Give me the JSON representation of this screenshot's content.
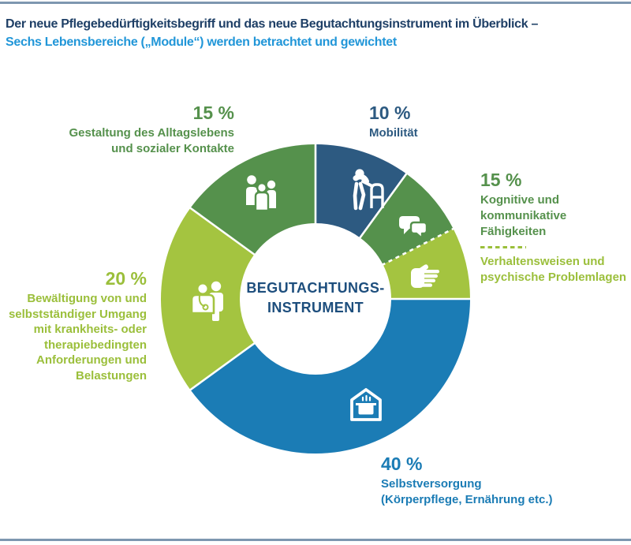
{
  "header": {
    "title_line1": "Der neue Pflegebedürftigkeitsbegriff und das neue Begutachtungsinstrument im Überblick –",
    "title_line2": "Sechs Lebensbereiche („Module“) werden betrachtet und gewichtet"
  },
  "chart_data": {
    "type": "pie",
    "variant": "donut",
    "title": "Der neue Pflegebedürftigkeitsbegriff und das neue Begutachtungsinstrument im Überblick – Sechs Lebensbereiche („Module“) werden betrachtet und gewichtet",
    "center_label": [
      "BEGUTACHTUNGS-",
      "INSTRUMENT"
    ],
    "start_angle_deg": 0,
    "direction": "clockwise",
    "legend_position": "around-chart",
    "segments": [
      {
        "label": "Mobilität",
        "value": 10,
        "color": "#2D5A81",
        "icon": "walker-icon",
        "divider_before": "solid"
      },
      {
        "label": "Kognitive und kommunikative Fähigkeiten",
        "value": 7.5,
        "color": "#55914C",
        "icon": "speech-bubbles-icon",
        "divider_before": "solid"
      },
      {
        "label": "Verhaltensweisen und psychische Problemlagen",
        "value": 7.5,
        "color": "#A4C440",
        "icon": "hand-icon",
        "divider_before": "dashed"
      },
      {
        "label": "Selbstversorgung (Körperpflege, Ernährung etc.)",
        "value": 40,
        "color": "#1B7CB5",
        "icon": "house-pot-icon",
        "divider_before": "solid"
      },
      {
        "label": "Bewältigung von und selbstständiger Umgang mit krankheits- oder therapiebedingten Anforderungen und Belastungen",
        "value": 20,
        "color": "#A4C440",
        "icon": "doctor-patient-icon",
        "divider_before": "solid"
      },
      {
        "label": "Gestaltung des Alltagslebens und sozialer Kontakte",
        "value": 15,
        "color": "#55914C",
        "icon": "people-group-icon",
        "divider_before": "solid"
      }
    ]
  },
  "labels": {
    "mobilitaet": {
      "pct": "10 %",
      "lines": [
        "Mobilität"
      ]
    },
    "kognitive": {
      "pct": "15 %",
      "block1": [
        "Kognitive und kommunikative",
        "Fähigkeiten"
      ],
      "block2": [
        "Verhaltensweisen und",
        "psychische Problemlagen"
      ]
    },
    "gestaltung": {
      "pct": "15 %",
      "lines": [
        "Gestaltung des Alltagslebens",
        "und sozialer Kontakte"
      ]
    },
    "bewaeltigung": {
      "pct": "20 %",
      "lines": [
        "Bewältigung von und",
        "selbstständiger Umgang",
        "mit krankheits- oder",
        "therapiebedingten",
        "Anforderungen und",
        "Belastungen"
      ]
    },
    "selbstversorgung": {
      "pct": "40 %",
      "lines": [
        "Selbstversorgung",
        "(Körperpflege, Ernährung etc.)"
      ]
    }
  },
  "palette": {
    "rule_blue": "#7E97B0",
    "title_navy": "#1E3F66",
    "subtitle_blue": "#2196D8",
    "center_navy": "#1D4E7D",
    "dark_blue": "#2D5A81",
    "mid_green": "#55914C",
    "light_green": "#A4C440",
    "light_green_text": "#9BBF3B",
    "mid_blue": "#1B7CB5"
  }
}
